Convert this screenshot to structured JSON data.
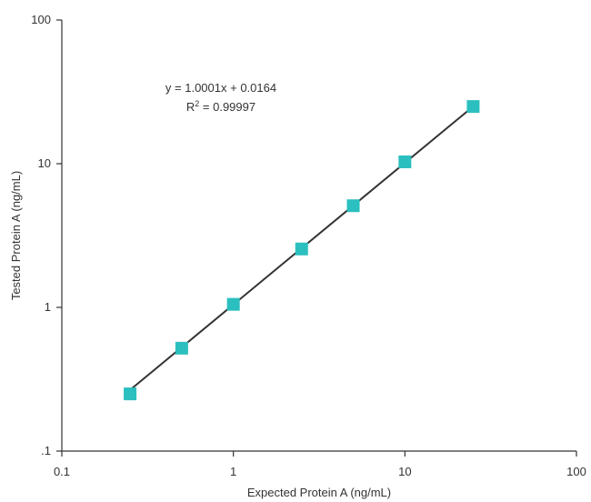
{
  "chart_data": {
    "type": "scatter",
    "title": "",
    "xlabel": "Expected Protein A (ng/mL)",
    "ylabel": "Tested Protein A (ng/mL)",
    "xscale": "log",
    "yscale": "log",
    "xlim": [
      0.1,
      100
    ],
    "ylim": [
      0.1,
      100
    ],
    "x_ticks": [
      "0.1",
      "1",
      "10",
      "100"
    ],
    "y_ticks": [
      ".1",
      "1",
      "10",
      "100"
    ],
    "grid": false,
    "legend": "none",
    "series": [
      {
        "x": [
          0.25,
          0.5,
          1,
          2.5,
          5,
          10,
          25
        ],
        "y": [
          0.25,
          0.52,
          1.05,
          2.55,
          5.1,
          10.3,
          25
        ],
        "marker": "square",
        "color": "#2bbfbf"
      }
    ],
    "trendline": {
      "x_range": [
        0.25,
        25
      ],
      "slope": 1.0001,
      "intercept": 0.0164,
      "color": "#333333"
    },
    "annotations": {
      "equation": "y = 1.0001x + 0.0164",
      "r2_label": "R",
      "r2_sup": "2",
      "r2_value": " = 0.99997"
    }
  }
}
